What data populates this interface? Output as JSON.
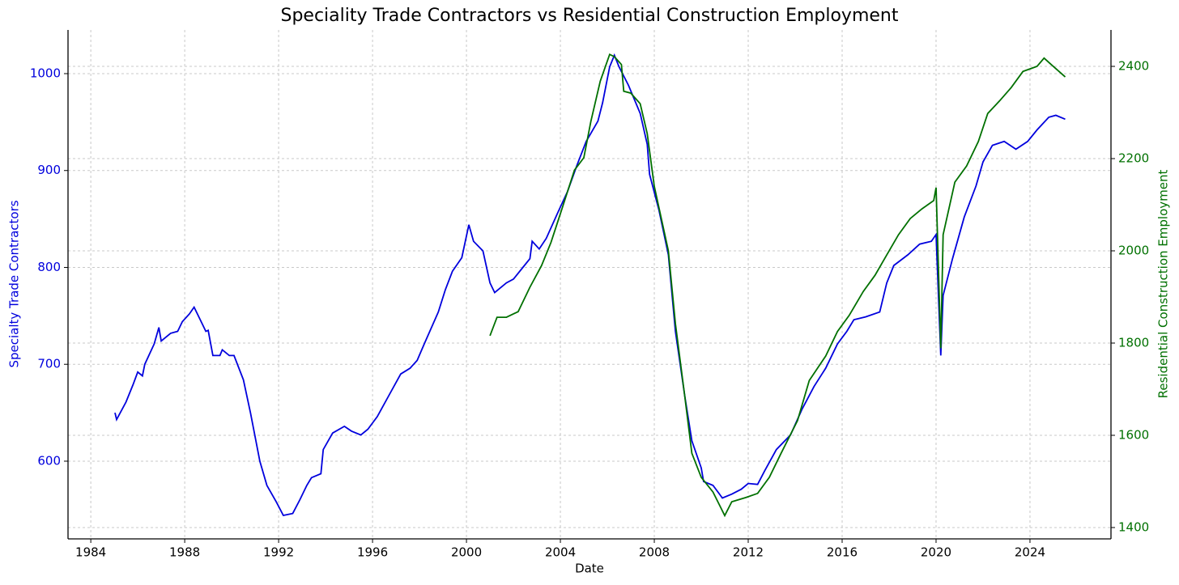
{
  "chart_data": {
    "type": "line",
    "title": "Speciality Trade Contractors vs Residential Construction Employment",
    "x_label": "Date",
    "y_label": "Specialty Trade Contractors",
    "y2_label": "Residential Construction Employment",
    "xlim": [
      1983.03,
      2027.45
    ],
    "xticks": [
      1984,
      1988,
      1992,
      1996,
      2000,
      2004,
      2008,
      2012,
      2016,
      2020,
      2024
    ],
    "ylim": [
      519.8,
      1045.1
    ],
    "yticks": [
      600,
      700,
      800,
      900,
      1000
    ],
    "y2lim": [
      1375.4,
      2479
    ],
    "y2ticks": [
      1400,
      1600,
      1800,
      2000,
      2200,
      2400
    ],
    "grid": true,
    "series": [
      {
        "name": "Specialty Trade Contractors",
        "color": "#0000dd",
        "axis": "y",
        "x": [
          1985.03,
          1985.1,
          1985.5,
          1985.8,
          1986.0,
          1986.2,
          1986.3,
          1986.7,
          1986.9,
          1987.0,
          1987.4,
          1987.7,
          1987.9,
          1988.2,
          1988.4,
          1988.7,
          1988.9,
          1989.0,
          1989.2,
          1989.5,
          1989.6,
          1989.9,
          1990.1,
          1990.5,
          1990.8,
          1991.2,
          1991.5,
          1991.9,
          1992.2,
          1992.6,
          1992.9,
          1993.2,
          1993.4,
          1993.8,
          1993.9,
          1994.3,
          1994.8,
          1995.1,
          1995.5,
          1995.8,
          1996.2,
          1996.7,
          1997.2,
          1997.6,
          1997.9,
          1998.2,
          1998.8,
          1999.1,
          1999.4,
          1999.8,
          2000.1,
          2000.3,
          2000.7,
          2001.0,
          2001.2,
          2001.7,
          2002.0,
          2002.4,
          2002.7,
          2002.8,
          2003.1,
          2003.4,
          2003.9,
          2004.3,
          2004.7,
          2005.1,
          2005.6,
          2005.8,
          2006.1,
          2006.3,
          2006.5,
          2006.9,
          2007.4,
          2007.7,
          2007.8,
          2008.2,
          2008.6,
          2008.9,
          2009.3,
          2009.6,
          2010.0,
          2010.1,
          2010.5,
          2010.9,
          2011.3,
          2011.7,
          2012.0,
          2012.4,
          2012.7,
          2013.2,
          2013.8,
          2014.3,
          2014.8,
          2015.3,
          2015.8,
          2016.2,
          2016.5,
          2017.0,
          2017.6,
          2017.9,
          2018.2,
          2018.8,
          2019.3,
          2019.8,
          2020.0,
          2020.2,
          2020.3,
          2020.7,
          2021.2,
          2021.7,
          2022.0,
          2022.4,
          2022.9,
          2023.4,
          2023.9,
          2024.3,
          2024.8,
          2025.1,
          2025.5
        ],
        "values": [
          650,
          643,
          661,
          679,
          692,
          688,
          700,
          721,
          738,
          724,
          732,
          734,
          744,
          752,
          759,
          744,
          734,
          735,
          709,
          709,
          715,
          709,
          709,
          684,
          650,
          600,
          575,
          558,
          544,
          546,
          560,
          575,
          583,
          587,
          612,
          629,
          636,
          631,
          627,
          633,
          646,
          668,
          690,
          696,
          704,
          721,
          754,
          777,
          796,
          810,
          844,
          827,
          817,
          784,
          774,
          784,
          788,
          800,
          809,
          827,
          819,
          830,
          857,
          878,
          905,
          930,
          951,
          970,
          1007,
          1019,
          1007,
          988,
          959,
          927,
          896,
          859,
          813,
          734,
          667,
          621,
          593,
          579,
          575,
          562,
          566,
          571,
          577,
          576,
          590,
          612,
          627,
          654,
          677,
          696,
          721,
          734,
          746,
          749,
          754,
          784,
          802,
          813,
          824,
          827,
          834,
          709,
          771,
          809,
          852,
          884,
          909,
          926,
          930,
          922,
          930,
          942,
          955,
          957,
          953
        ]
      },
      {
        "name": "Residential Construction Employment",
        "color": "#007000",
        "axis": "y2",
        "x": [
          2001.0,
          2001.3,
          2001.7,
          2002.2,
          2002.7,
          2003.2,
          2003.6,
          2004.1,
          2004.6,
          2005.0,
          2005.3,
          2005.7,
          2006.1,
          2006.3,
          2006.6,
          2006.7,
          2007.0,
          2007.4,
          2007.7,
          2008.0,
          2008.6,
          2008.9,
          2009.3,
          2009.6,
          2010.0,
          2010.5,
          2011.0,
          2011.3,
          2011.9,
          2012.4,
          2012.9,
          2013.4,
          2014.1,
          2014.6,
          2015.3,
          2015.8,
          2016.3,
          2016.9,
          2017.4,
          2017.9,
          2018.4,
          2018.9,
          2019.4,
          2019.9,
          2020.0,
          2020.2,
          2020.3,
          2020.8,
          2021.3,
          2021.8,
          2022.2,
          2022.7,
          2023.2,
          2023.7,
          2024.3,
          2024.6,
          2024.9,
          2025.5
        ],
        "values": [
          1816,
          1856,
          1856,
          1868,
          1921,
          1968,
          2018,
          2096,
          2175,
          2202,
          2281,
          2368,
          2426,
          2421,
          2404,
          2346,
          2342,
          2319,
          2254,
          2140,
          2000,
          1842,
          1684,
          1561,
          1509,
          1477,
          1426,
          1456,
          1465,
          1474,
          1509,
          1561,
          1632,
          1719,
          1772,
          1825,
          1860,
          1912,
          1947,
          1991,
          2035,
          2070,
          2091,
          2109,
          2137,
          1789,
          2035,
          2149,
          2184,
          2237,
          2298,
          2325,
          2354,
          2389,
          2400,
          2418,
          2404,
          2377
        ]
      }
    ]
  }
}
